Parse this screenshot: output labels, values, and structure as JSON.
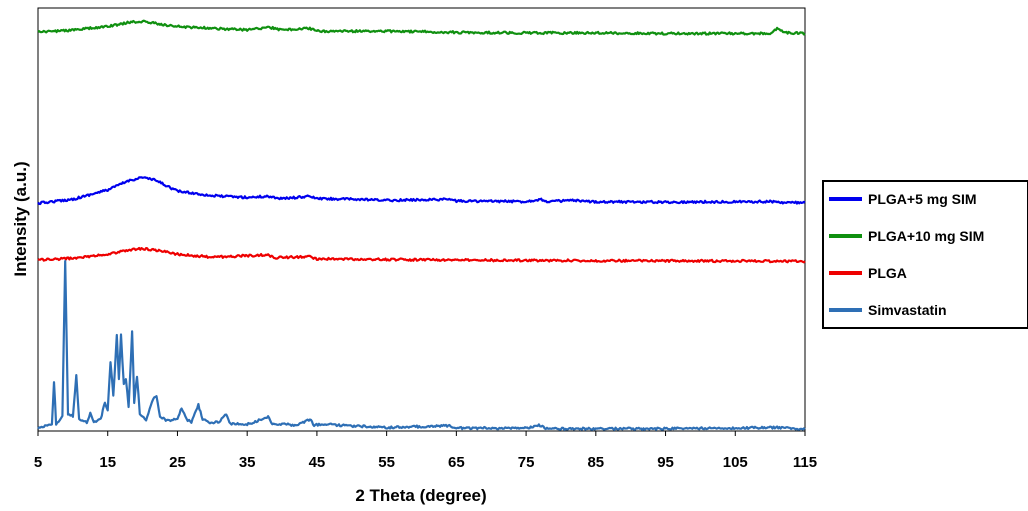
{
  "chart_data": {
    "type": "line",
    "title": "",
    "xlabel": "2 Theta (degree)",
    "ylabel": "Intensity (a.u.)",
    "xlim": [
      5,
      115
    ],
    "x_ticks": [
      "5",
      "15",
      "25",
      "35",
      "45",
      "55",
      "65",
      "75",
      "85",
      "95",
      "105",
      "115"
    ],
    "grid": false,
    "y_tick_labels": false,
    "legend_position": "right",
    "series": [
      {
        "name": "PLGA+5 mg SIM",
        "color": "#0000ee",
        "points": [
          [
            5,
            3.93
          ],
          [
            10,
            4.0
          ],
          [
            15,
            4.16
          ],
          [
            18,
            4.32
          ],
          [
            20,
            4.38
          ],
          [
            22,
            4.32
          ],
          [
            25,
            4.14
          ],
          [
            30,
            4.06
          ],
          [
            35,
            4.03
          ],
          [
            38,
            4.05
          ],
          [
            40,
            4.01
          ],
          [
            44,
            4.05
          ],
          [
            45,
            4.01
          ],
          [
            50,
            4.0
          ],
          [
            55,
            3.98
          ],
          [
            64,
            4.0
          ],
          [
            65,
            3.97
          ],
          [
            75,
            3.96
          ],
          [
            77,
            4.0
          ],
          [
            78,
            3.96
          ],
          [
            82,
            3.98
          ],
          [
            83,
            3.96
          ],
          [
            95,
            3.95
          ],
          [
            111,
            3.96
          ],
          [
            112,
            3.94
          ],
          [
            115,
            3.94
          ]
        ]
      },
      {
        "name": "PLGA+10 mg SIM",
        "color": "#109010",
        "points": [
          [
            5,
            6.88
          ],
          [
            10,
            6.92
          ],
          [
            15,
            6.98
          ],
          [
            18,
            7.05
          ],
          [
            20,
            7.07
          ],
          [
            22,
            7.03
          ],
          [
            25,
            6.98
          ],
          [
            30,
            6.95
          ],
          [
            35,
            6.92
          ],
          [
            38,
            6.97
          ],
          [
            40,
            6.92
          ],
          [
            44,
            6.95
          ],
          [
            45,
            6.9
          ],
          [
            55,
            6.9
          ],
          [
            65,
            6.88
          ],
          [
            75,
            6.87
          ],
          [
            85,
            6.87
          ],
          [
            95,
            6.86
          ],
          [
            110,
            6.86
          ],
          [
            111,
            6.94
          ],
          [
            112,
            6.88
          ],
          [
            115,
            6.86
          ]
        ]
      },
      {
        "name": "PLGA",
        "color": "#ee0000",
        "points": [
          [
            5,
            2.95
          ],
          [
            10,
            2.98
          ],
          [
            15,
            3.05
          ],
          [
            18,
            3.12
          ],
          [
            20,
            3.15
          ],
          [
            22,
            3.12
          ],
          [
            25,
            3.05
          ],
          [
            30,
            3.0
          ],
          [
            38,
            3.04
          ],
          [
            39,
            2.99
          ],
          [
            44,
            3.01
          ],
          [
            45,
            2.97
          ],
          [
            55,
            2.96
          ],
          [
            65,
            2.95
          ],
          [
            85,
            2.94
          ],
          [
            115,
            2.93
          ]
        ]
      },
      {
        "name": "Simvastatin",
        "color": "#2e6fb5",
        "points": [
          [
            5,
            0.05
          ],
          [
            6,
            0.08
          ],
          [
            7,
            0.1
          ],
          [
            7.3,
            0.85
          ],
          [
            7.6,
            0.12
          ],
          [
            8.5,
            0.25
          ],
          [
            8.9,
            2.95
          ],
          [
            9.3,
            0.3
          ],
          [
            10,
            0.25
          ],
          [
            10.5,
            0.95
          ],
          [
            10.9,
            0.2
          ],
          [
            12,
            0.15
          ],
          [
            12.5,
            0.3
          ],
          [
            13,
            0.15
          ],
          [
            14,
            0.2
          ],
          [
            14.6,
            0.5
          ],
          [
            15,
            0.35
          ],
          [
            15.4,
            1.2
          ],
          [
            15.8,
            0.6
          ],
          [
            16.3,
            1.65
          ],
          [
            16.6,
            0.9
          ],
          [
            16.9,
            1.65
          ],
          [
            17.3,
            0.8
          ],
          [
            17.6,
            0.9
          ],
          [
            18,
            0.4
          ],
          [
            18.5,
            1.72
          ],
          [
            18.8,
            0.5
          ],
          [
            19.2,
            0.95
          ],
          [
            19.6,
            0.3
          ],
          [
            20.5,
            0.2
          ],
          [
            21.5,
            0.55
          ],
          [
            22,
            0.6
          ],
          [
            22.5,
            0.25
          ],
          [
            23.5,
            0.18
          ],
          [
            25,
            0.2
          ],
          [
            25.6,
            0.4
          ],
          [
            26.3,
            0.2
          ],
          [
            27,
            0.15
          ],
          [
            28,
            0.45
          ],
          [
            28.6,
            0.2
          ],
          [
            29.5,
            0.15
          ],
          [
            31,
            0.15
          ],
          [
            32,
            0.3
          ],
          [
            32.6,
            0.12
          ],
          [
            35,
            0.12
          ],
          [
            36,
            0.15
          ],
          [
            38,
            0.25
          ],
          [
            38.6,
            0.12
          ],
          [
            40,
            0.12
          ],
          [
            42,
            0.1
          ],
          [
            44,
            0.2
          ],
          [
            44.6,
            0.1
          ],
          [
            46,
            0.12
          ],
          [
            48,
            0.1
          ],
          [
            55,
            0.06
          ],
          [
            64,
            0.09
          ],
          [
            65,
            0.05
          ],
          [
            75,
            0.05
          ],
          [
            77,
            0.1
          ],
          [
            78,
            0.04
          ],
          [
            95,
            0.04
          ],
          [
            111,
            0.06
          ],
          [
            115,
            0.03
          ]
        ]
      }
    ]
  },
  "legend": {
    "items": [
      {
        "label": "PLGA+5 mg SIM",
        "color": "#0000ee"
      },
      {
        "label": "PLGA+10 mg SIM",
        "color": "#109010"
      },
      {
        "label": "PLGA",
        "color": "#ee0000"
      },
      {
        "label": "Simvastatin",
        "color": "#2e6fb5"
      }
    ]
  }
}
